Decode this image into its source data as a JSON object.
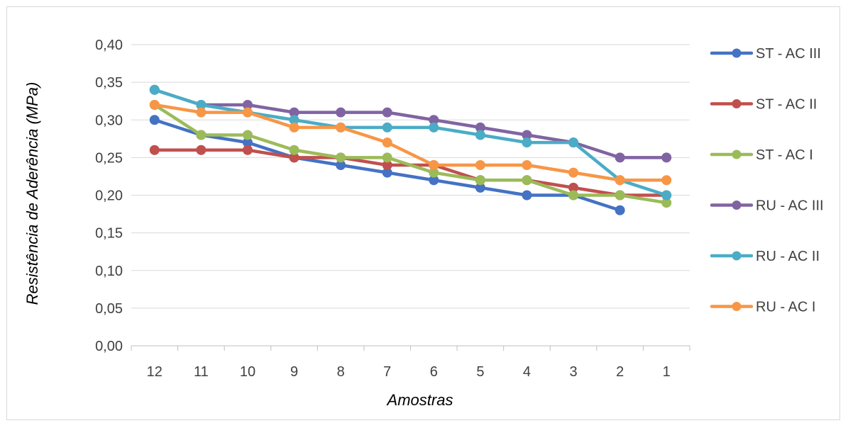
{
  "chart_data": {
    "type": "line",
    "title": "",
    "xlabel": "Amostras",
    "ylabel": "Resistência de Aderência (MPa)",
    "categories": [
      "12",
      "11",
      "10",
      "9",
      "8",
      "7",
      "6",
      "5",
      "4",
      "3",
      "2",
      "1"
    ],
    "ylim": [
      0,
      0.4
    ],
    "yticks": [
      0,
      0.05,
      0.1,
      0.15,
      0.2,
      0.25,
      0.3,
      0.35,
      0.4
    ],
    "ytick_labels": [
      "0,00",
      "0,05",
      "0,10",
      "0,15",
      "0,20",
      "0,25",
      "0,30",
      "0,35",
      "0,40"
    ],
    "grid": true,
    "legend_position": "right",
    "series": [
      {
        "name": "ST - AC III",
        "color": "#4472c4",
        "values": [
          0.3,
          0.28,
          0.27,
          0.25,
          0.24,
          0.23,
          0.22,
          0.21,
          0.2,
          0.2,
          0.18,
          null
        ]
      },
      {
        "name": "ST - AC II",
        "color": "#c0504d",
        "values": [
          0.26,
          0.26,
          0.26,
          0.25,
          0.25,
          0.24,
          0.24,
          0.22,
          0.22,
          0.21,
          0.2,
          0.2
        ]
      },
      {
        "name": "ST - AC I",
        "color": "#9bbb59",
        "values": [
          0.32,
          0.28,
          0.28,
          0.26,
          0.25,
          0.25,
          0.23,
          0.22,
          0.22,
          0.2,
          0.2,
          0.19
        ]
      },
      {
        "name": "RU - AC III",
        "color": "#8064a2",
        "values": [
          0.34,
          0.32,
          0.32,
          0.31,
          0.31,
          0.31,
          0.3,
          0.29,
          0.28,
          0.27,
          0.25,
          0.25
        ]
      },
      {
        "name": "RU - AC II",
        "color": "#4bacc6",
        "values": [
          0.34,
          0.32,
          0.31,
          0.3,
          0.29,
          0.29,
          0.29,
          0.28,
          0.27,
          0.27,
          0.22,
          0.2
        ]
      },
      {
        "name": "RU - AC I",
        "color": "#f79646",
        "values": [
          0.32,
          0.31,
          0.31,
          0.29,
          0.29,
          0.27,
          0.24,
          0.24,
          0.24,
          0.23,
          0.22,
          0.22
        ]
      }
    ]
  }
}
